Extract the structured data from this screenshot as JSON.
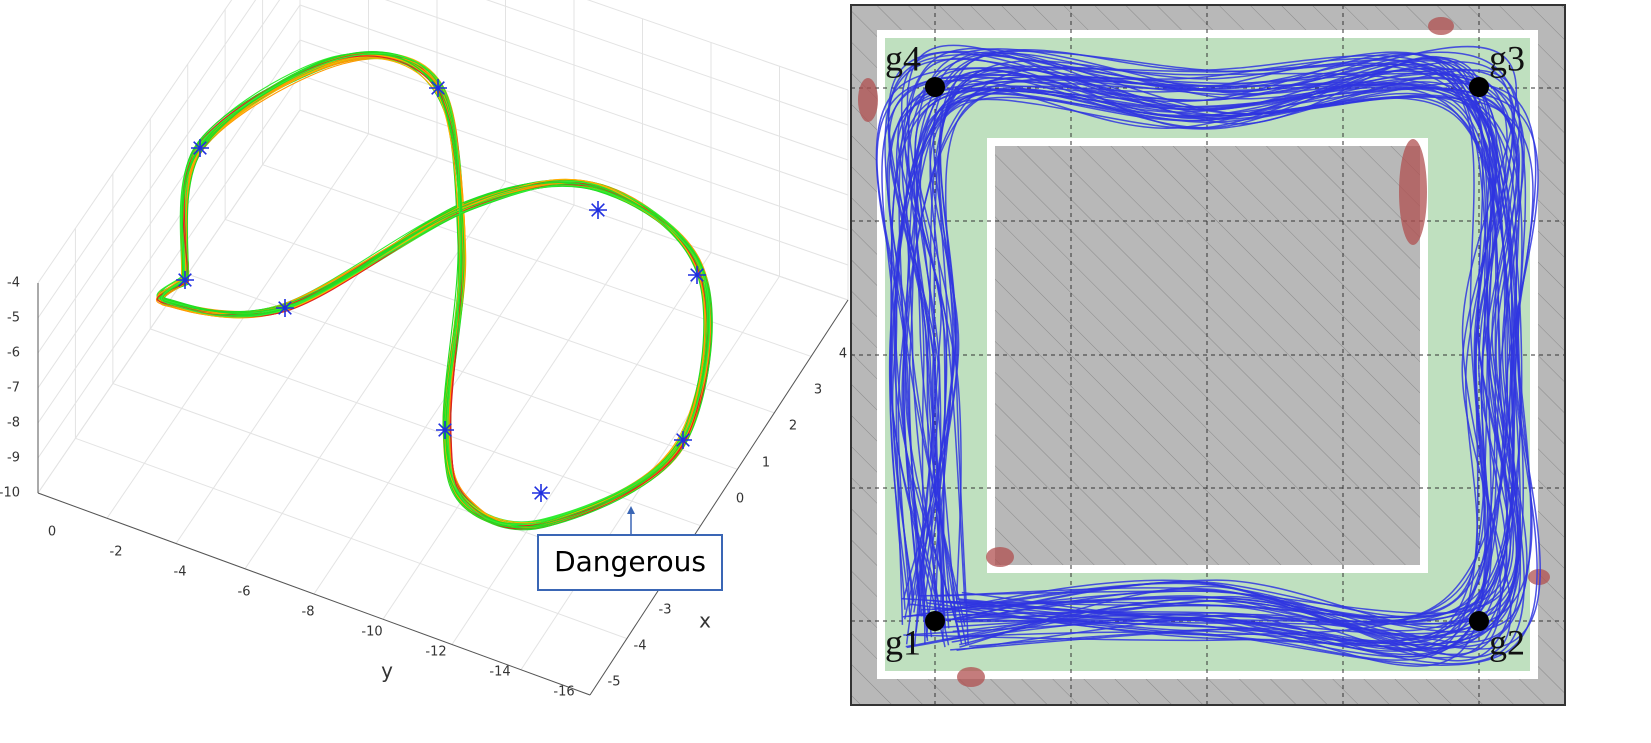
{
  "left_plot": {
    "z_ticks": [
      "-4",
      "-5",
      "-6",
      "-7",
      "-8",
      "-9",
      "-10"
    ],
    "y_ticks": [
      "0",
      "-2",
      "-4",
      "-6",
      "-8",
      "-10",
      "-12",
      "-14",
      "-16"
    ],
    "x_ticks": [
      "4",
      "3",
      "2",
      "1",
      "0",
      "-3",
      "-4",
      "-5"
    ],
    "x_label": "x",
    "y_label": "y",
    "annotation": "Dangerous"
  },
  "right_plot": {
    "goals": [
      "g1",
      "g2",
      "g3",
      "g4"
    ]
  }
}
